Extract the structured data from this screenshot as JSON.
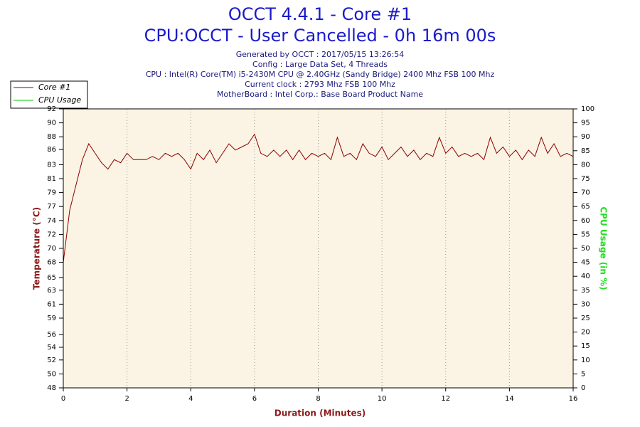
{
  "chart_data": {
    "type": "line",
    "title": "OCCT 4.4.1 - Core #1",
    "subtitle": "CPU:OCCT - User Cancelled - 0h 16m 00s",
    "info": [
      "Generated by OCCT : 2017/05/15 13:26:54",
      "Config : Large Data Set, 4 Threads",
      "CPU : Intel(R) Core(TM) i5-2430M CPU @ 2.40GHz (Sandy Bridge) 2400 Mhz FSB 100 Mhz",
      "Current clock : 2793 Mhz FSB 100 Mhz",
      "MotherBoard : Intel Corp.: Base Board Product Name"
    ],
    "xlabel": "Duration (Minutes)",
    "ylabel": "Temperature (°C)",
    "y2label": "CPU Usage (in %)",
    "xlim": [
      0,
      16
    ],
    "xticks": [
      0,
      2,
      4,
      6,
      8,
      10,
      12,
      14,
      16
    ],
    "ylim": [
      48,
      92
    ],
    "yticks": [
      48,
      {
        "value": 50.2,
        "label": "50"
      },
      {
        "value": 52.4,
        "label": "52"
      },
      {
        "value": 54.4,
        "label": "54"
      },
      {
        "value": 56.4,
        "label": "56"
      },
      59,
      {
        "value": 61.2,
        "label": "61"
      },
      {
        "value": 63.4,
        "label": "63"
      },
      {
        "value": 65.4,
        "label": "65"
      },
      {
        "value": 67.8,
        "label": "68"
      },
      70,
      {
        "value": 72.2,
        "label": "72"
      },
      {
        "value": 74.4,
        "label": "74"
      },
      {
        "value": 76.6,
        "label": "77"
      },
      {
        "value": 78.8,
        "label": "79"
      },
      81,
      {
        "value": 83.2,
        "label": "83"
      },
      {
        "value": 85.6,
        "label": "86"
      },
      {
        "value": 87.6,
        "label": "88"
      },
      {
        "value": 89.8,
        "label": "90"
      },
      92
    ],
    "y2lim": [
      0,
      100
    ],
    "y2ticks": [
      0,
      5,
      10,
      15,
      20,
      25,
      30,
      35,
      40,
      45,
      50,
      55,
      60,
      65,
      70,
      75,
      80,
      85,
      90,
      95,
      100
    ],
    "grid": true,
    "legend": "top-left",
    "series": [
      {
        "name": "Core #1",
        "color": "#8b0000",
        "x": [
          0,
          0.2,
          0.4,
          0.6,
          0.8,
          1,
          1.2,
          1.4,
          1.6,
          1.8,
          2,
          2.2,
          2.4,
          2.6,
          2.8,
          3,
          3.2,
          3.4,
          3.6,
          3.8,
          4,
          4.2,
          4.4,
          4.6,
          4.8,
          5,
          5.2,
          5.4,
          5.6,
          5.8,
          6,
          6.2,
          6.4,
          6.6,
          6.8,
          7,
          7.2,
          7.4,
          7.6,
          7.8,
          8,
          8.2,
          8.4,
          8.6,
          8.8,
          9,
          9.2,
          9.4,
          9.6,
          9.8,
          10,
          10.2,
          10.4,
          10.6,
          10.8,
          11,
          11.2,
          11.4,
          11.6,
          11.8,
          12,
          12.2,
          12.4,
          12.6,
          12.8,
          13,
          13.2,
          13.4,
          13.6,
          13.8,
          14,
          14.2,
          14.4,
          14.6,
          14.8,
          15,
          15.2,
          15.4,
          15.6,
          15.8,
          16
        ],
        "values": [
          67.8,
          76,
          80,
          84,
          86.5,
          85,
          83.5,
          82.5,
          84,
          83.5,
          85,
          84,
          84,
          84,
          84.5,
          84,
          85,
          84.5,
          85,
          84,
          82.5,
          85,
          84,
          85.5,
          83.5,
          85,
          86.5,
          85.5,
          86,
          86.5,
          88,
          85,
          84.5,
          85.5,
          84.5,
          85.5,
          84,
          85.5,
          84,
          85,
          84.5,
          85,
          84,
          87.5,
          84.5,
          85,
          84,
          86.5,
          85,
          84.5,
          86,
          84,
          85,
          86,
          84.5,
          85.5,
          84,
          85,
          84.5,
          87.5,
          85,
          86,
          84.5,
          85,
          84.5,
          85,
          84,
          87.5,
          85,
          86,
          84.5,
          85.5,
          84,
          85.5,
          84.5,
          87.5,
          85,
          86.5,
          84.5,
          85,
          84.5
        ]
      },
      {
        "name": "CPU Usage",
        "color": "#00cc00",
        "axis": "y2",
        "x": [
          0,
          16
        ],
        "values": [
          100,
          100
        ]
      }
    ]
  }
}
